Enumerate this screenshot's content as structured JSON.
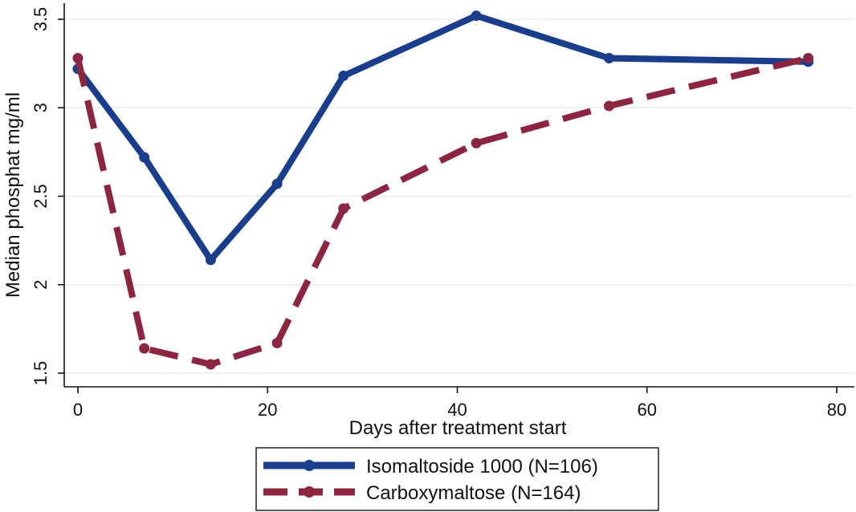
{
  "chart_data": {
    "type": "line",
    "title": "",
    "xlabel": "Days after treatment start",
    "ylabel": "Median phosphat mg/ml",
    "xlim": [
      0,
      80
    ],
    "ylim": [
      1.5,
      3.5
    ],
    "x_ticks": [
      0,
      20,
      40,
      60,
      80
    ],
    "y_ticks": [
      1.5,
      2,
      2.5,
      3,
      3.5
    ],
    "x_tick_labels": [
      "0",
      "20",
      "40",
      "60",
      "80"
    ],
    "y_tick_labels": [
      "1.5",
      "2",
      "2.5",
      "3",
      "3.5"
    ],
    "grid": true,
    "legend_position": "bottom",
    "series": [
      {
        "name": "Isomaltoside 1000 (N=106)",
        "color": "#1a3e8c",
        "style": "solid",
        "x": [
          0,
          7,
          14,
          21,
          28,
          42,
          56,
          77
        ],
        "y": [
          3.22,
          2.72,
          2.14,
          2.57,
          3.18,
          3.52,
          3.28,
          3.26
        ]
      },
      {
        "name": "Carboxymaltose (N=164)",
        "color": "#8c2540",
        "style": "dashed",
        "x": [
          0,
          7,
          14,
          21,
          28,
          42,
          56,
          77
        ],
        "y": [
          3.28,
          1.64,
          1.55,
          1.67,
          2.43,
          2.8,
          3.01,
          3.28
        ]
      }
    ]
  }
}
